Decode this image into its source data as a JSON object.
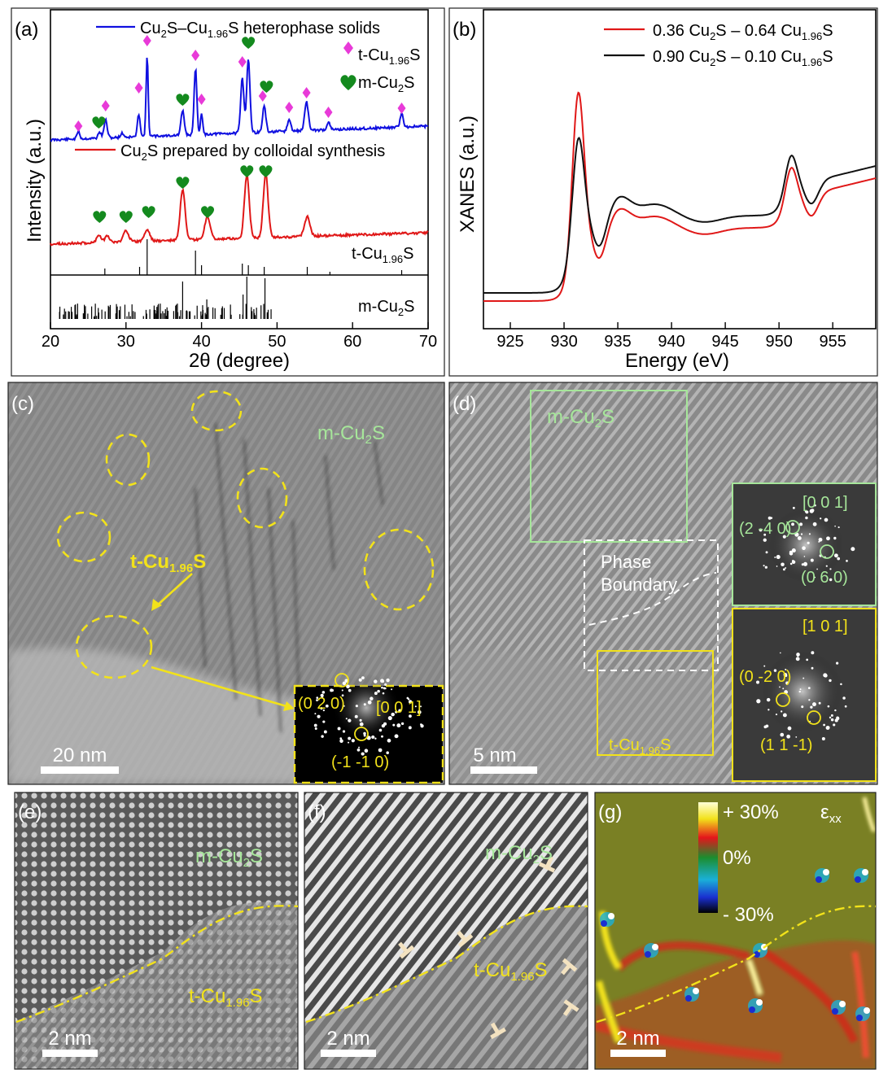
{
  "colors": {
    "xrd_top": "#1010e0",
    "xrd_bottom": "#e01818",
    "xanes_red": "#e01818",
    "xanes_black": "#111111",
    "pink": "#e83ad8",
    "green": "#148a1e",
    "yellow": "#f2e21a",
    "lightgreen": "#a6e69a"
  },
  "panel_a": {
    "label": "(a)",
    "ylabel": "Intensity (a.u.)",
    "xlabel": "2θ (degree)",
    "xticks": [
      "20",
      "30",
      "40",
      "50",
      "60",
      "70"
    ],
    "legend_top": {
      "pre": "Cu",
      "s1": "2",
      "mid": "S–Cu",
      "s2": "1.96",
      "post": "S  heterophase solids"
    },
    "legend_t": {
      "pre": "t-Cu",
      "sub": "1.96",
      "post": "S"
    },
    "legend_m": {
      "pre": "m-Cu",
      "sub": "2",
      "post": "S"
    },
    "legend_bottom": {
      "pre": "Cu",
      "sub": "2",
      "post": "S prepared by colloidal synthesis"
    },
    "ref_t": {
      "pre": "t-Cu",
      "sub": "1.96",
      "post": "S"
    },
    "ref_m": {
      "pre": "m-Cu",
      "sub": "2",
      "post": "S"
    }
  },
  "panel_b": {
    "label": "(b)",
    "ylabel": "XANES (a.u.)",
    "xlabel": "Energy (eV)",
    "xticks": [
      "925",
      "930",
      "935",
      "940",
      "945",
      "950",
      "955"
    ],
    "legend_red": {
      "a": "0.36 Cu",
      "s1": "2",
      "b": "S – 0.64 Cu",
      "s2": "1.96",
      "c": "S"
    },
    "legend_black": {
      "a": "0.90 Cu",
      "s1": "2",
      "b": "S – 0.10 Cu",
      "s2": "1.96",
      "c": "S"
    }
  },
  "panel_c": {
    "label": "(c)",
    "phase_m": {
      "pre": "m-Cu",
      "sub": "2",
      "post": "S"
    },
    "phase_t": {
      "pre": "t-Cu",
      "sub": "1.96",
      "post": "S"
    },
    "scalebar": "20 nm",
    "fft": {
      "zone": "[0 0 1]",
      "spot1": "(0 2 0)",
      "spot2": "(-1 -1 0)"
    }
  },
  "panel_d": {
    "label": "(d)",
    "phase_m": {
      "pre": "m-Cu",
      "sub": "2",
      "post": "S"
    },
    "phase_t": {
      "pre": "t-Cu",
      "sub": "1.96",
      "post": "S"
    },
    "boundary_1": "Phase",
    "boundary_2": "Boundary",
    "scalebar": "5 nm",
    "fft_top": {
      "zone": "[0 0 1]",
      "spot1": "(2 -4 0)",
      "spot2": "(0 6 0)"
    },
    "fft_bottom": {
      "zone": "[1 0 1]",
      "spot1": "(0 -2 0)",
      "spot2": "(1 1 -1)"
    }
  },
  "panel_e": {
    "label": "(e)",
    "phase_m": {
      "pre": "m-Cu",
      "sub": "2",
      "post": "S"
    },
    "phase_t": {
      "pre": "t-Cu",
      "sub": "1.96",
      "post": "S"
    },
    "scalebar": "2 nm"
  },
  "panel_f": {
    "label": "(f)",
    "phase_m": {
      "pre": "m-Cu",
      "sub": "2",
      "post": "S"
    },
    "phase_t": {
      "pre": "t-Cu",
      "sub": "1.96",
      "post": "S"
    },
    "scalebar": "2 nm"
  },
  "panel_g": {
    "label": "(g)",
    "cb_top": "+ 30%",
    "cb_mid": "0%",
    "cb_bot": "- 30%",
    "strain_symbol": "ε",
    "strain_sub": "xx",
    "scalebar": "2 nm"
  }
}
